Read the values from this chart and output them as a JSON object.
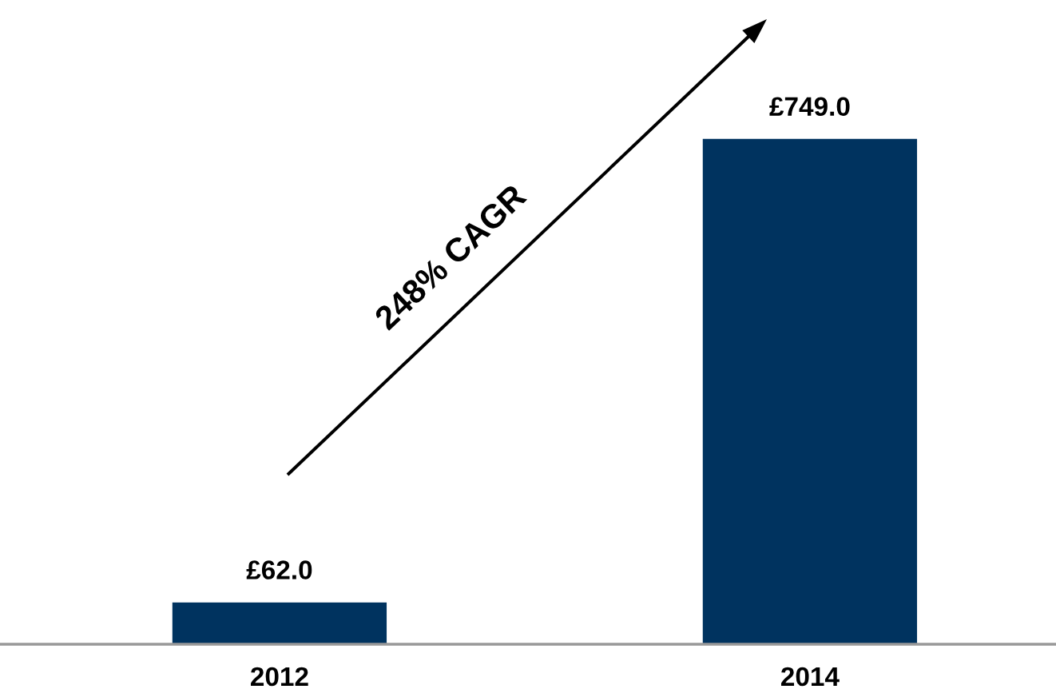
{
  "chart_data": {
    "type": "bar",
    "categories": [
      "2012",
      "2014"
    ],
    "values": [
      62.0,
      749.0
    ],
    "value_labels": [
      "£62.0",
      "£749.0"
    ],
    "color": "#00335f",
    "annotations": [
      "248% CAGR"
    ]
  }
}
